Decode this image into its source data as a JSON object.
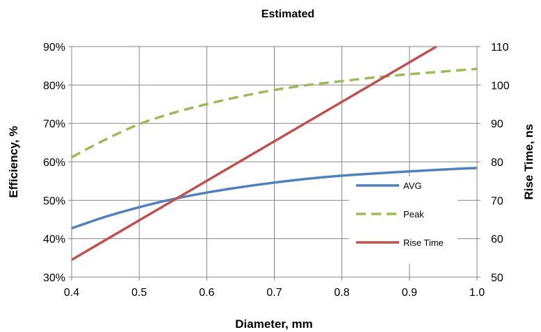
{
  "chart_data": {
    "type": "line",
    "title": "Estimated",
    "xlabel": "Diameter, mm",
    "ylabel": "Efficiency, %",
    "y2label": "Rise Time, ns",
    "xlim": [
      0.4,
      1.0
    ],
    "ylim": [
      30,
      90
    ],
    "y2lim": [
      50,
      110
    ],
    "x_ticks": [
      "0.4",
      "0.5",
      "0.6",
      "0.7",
      "0.8",
      "0.9",
      "1.0"
    ],
    "y_ticks": [
      "30%",
      "40%",
      "50%",
      "60%",
      "70%",
      "80%",
      "90%"
    ],
    "y2_ticks": [
      "50",
      "60",
      "70",
      "80",
      "90",
      "100",
      "110"
    ],
    "x_tick_values": [
      0.4,
      0.5,
      0.6,
      0.7,
      0.8,
      0.9,
      1.0
    ],
    "y_tick_values": [
      30,
      40,
      50,
      60,
      70,
      80,
      90
    ],
    "y2_tick_values": [
      50,
      60,
      70,
      80,
      90,
      100,
      110
    ],
    "grid": true,
    "legend_position": "bottom-right",
    "x": [
      0.4,
      0.45,
      0.5,
      0.55,
      0.6,
      0.65,
      0.7,
      0.75,
      0.8,
      0.85,
      0.9,
      0.95,
      1.0
    ],
    "series": [
      {
        "name": "AVG",
        "axis": "left",
        "style": "solid",
        "color": "#4F81BD",
        "values": [
          42.7,
          45.7,
          48.2,
          50.3,
          52.0,
          53.4,
          54.6,
          55.6,
          56.4,
          57.0,
          57.5,
          58.0,
          58.4
        ]
      },
      {
        "name": "Peak",
        "axis": "left",
        "style": "dashed",
        "color": "#9BBB59",
        "values": [
          61.2,
          65.8,
          69.8,
          72.7,
          75.0,
          77.0,
          78.7,
          80.0,
          81.0,
          82.0,
          82.8,
          83.5,
          84.2
        ]
      },
      {
        "name": "Rise Time",
        "axis": "right",
        "style": "solid",
        "color": "#C0504D",
        "x": [
          0.4,
          0.94
        ],
        "values": [
          54.5,
          110
        ]
      }
    ]
  }
}
